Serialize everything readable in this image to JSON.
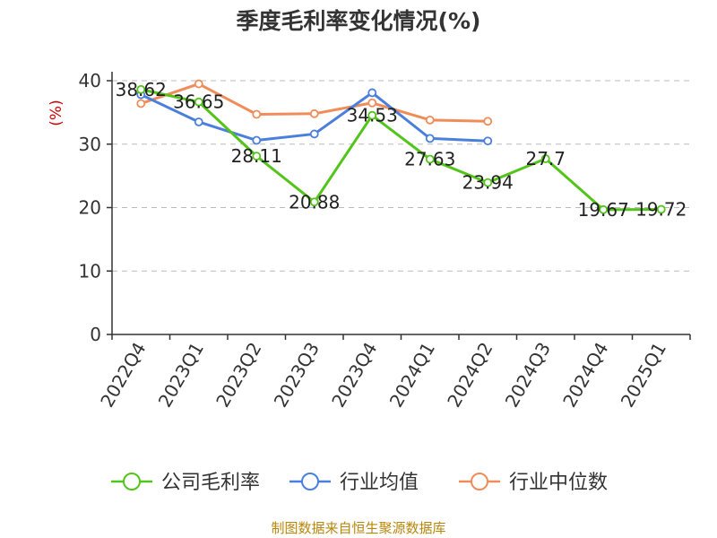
{
  "chart_data": {
    "type": "line",
    "title": "季度毛利率变化情况(%)",
    "ylabel": "(%)",
    "ylim": [
      0,
      40
    ],
    "yticks": [
      0,
      10,
      20,
      30,
      40
    ],
    "grid": true,
    "legend_position": "bottom",
    "categories": [
      "2022Q4",
      "2023Q1",
      "2023Q2",
      "2023Q3",
      "2023Q4",
      "2024Q1",
      "2024Q2",
      "2024Q3",
      "2024Q4",
      "2025Q1"
    ],
    "series": [
      {
        "name": "公司毛利率",
        "color": "#52c41a",
        "values": [
          38.62,
          36.65,
          28.11,
          20.88,
          34.53,
          27.63,
          23.94,
          27.7,
          19.67,
          19.72
        ],
        "labels": [
          "38.62",
          "36.65",
          "28.11",
          "20.88",
          "34.53",
          "27.63",
          "23.94",
          "27.7",
          "19.67",
          "19.72"
        ]
      },
      {
        "name": "行业均值",
        "color": "#4a7fdc",
        "values": [
          37.8,
          33.5,
          30.6,
          31.6,
          38.1,
          30.9,
          30.5,
          null,
          null,
          null
        ]
      },
      {
        "name": "行业中位数",
        "color": "#f08c5a",
        "values": [
          36.4,
          39.5,
          34.7,
          34.8,
          36.5,
          33.8,
          33.6,
          null,
          null,
          null
        ]
      }
    ],
    "source": "制图数据来自恒生聚源数据库"
  }
}
